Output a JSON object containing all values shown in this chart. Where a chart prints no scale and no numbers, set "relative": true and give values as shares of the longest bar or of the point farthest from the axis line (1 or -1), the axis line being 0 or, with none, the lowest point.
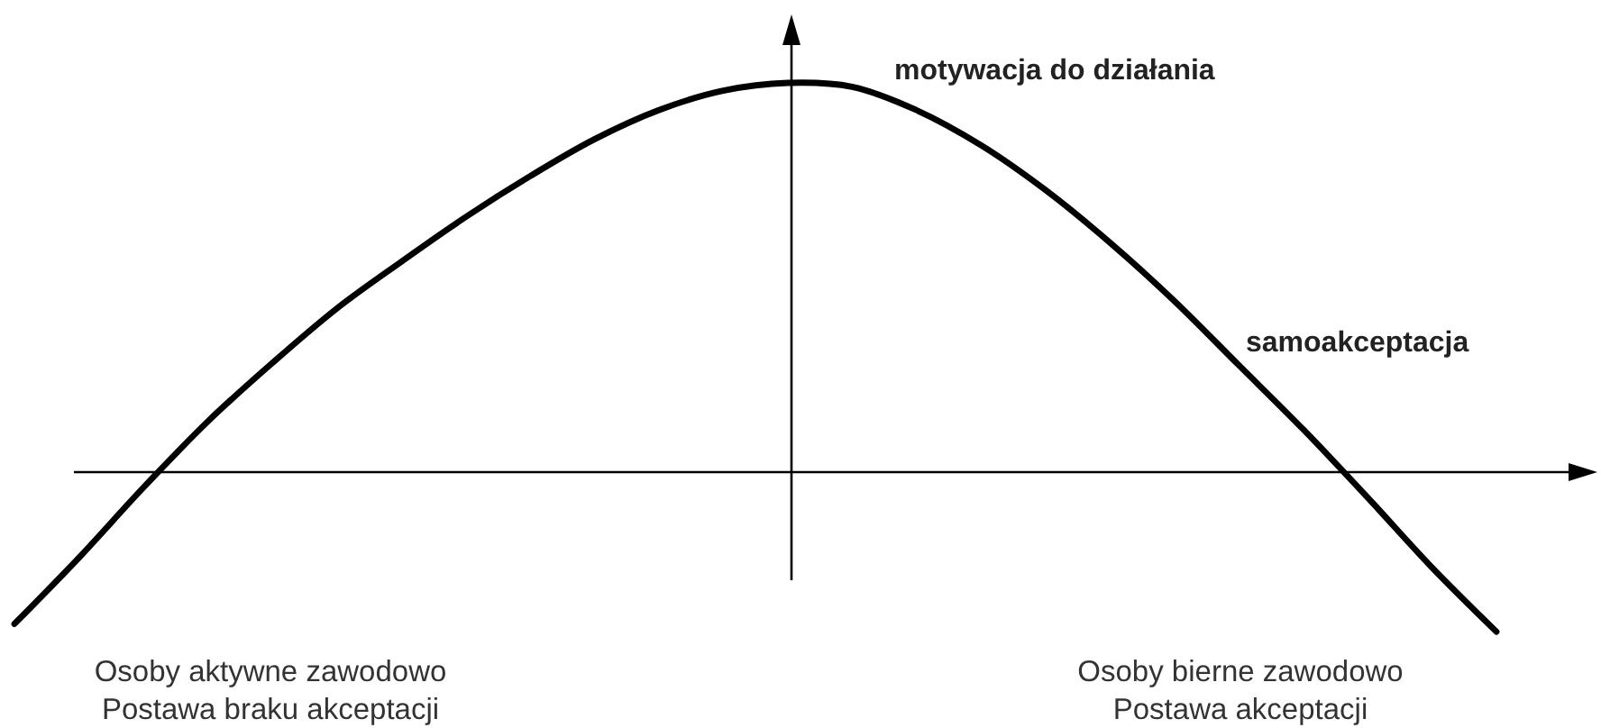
{
  "chart_data": {
    "type": "line",
    "relative": true,
    "xlabel": "samoakceptacja",
    "ylabel": "motywacja do działania",
    "categories": [
      null,
      null,
      null,
      null,
      null,
      null,
      null,
      null,
      null,
      null,
      null,
      null,
      null,
      null,
      null,
      null,
      null,
      null,
      null,
      null,
      null,
      null,
      null,
      null
    ],
    "color": "#000000",
    "values": [
      -0.39,
      -0.22,
      -0.04,
      0.13,
      0.28,
      0.42,
      0.54,
      0.655,
      0.76,
      0.855,
      0.93,
      0.98,
      1,
      0.99,
      0.93,
      0.84,
      0.725,
      0.59,
      0.44,
      0.275,
      0.11,
      -0.065,
      -0.245,
      -0.41
    ],
    "marker": "none",
    "line_style": "solid",
    "annotations": [
      "Osoby aktywne zawodowo\nPostawa braku akceptacji",
      "Osoby bierne zawodowo\nPostawa akceptacji"
    ]
  }
}
